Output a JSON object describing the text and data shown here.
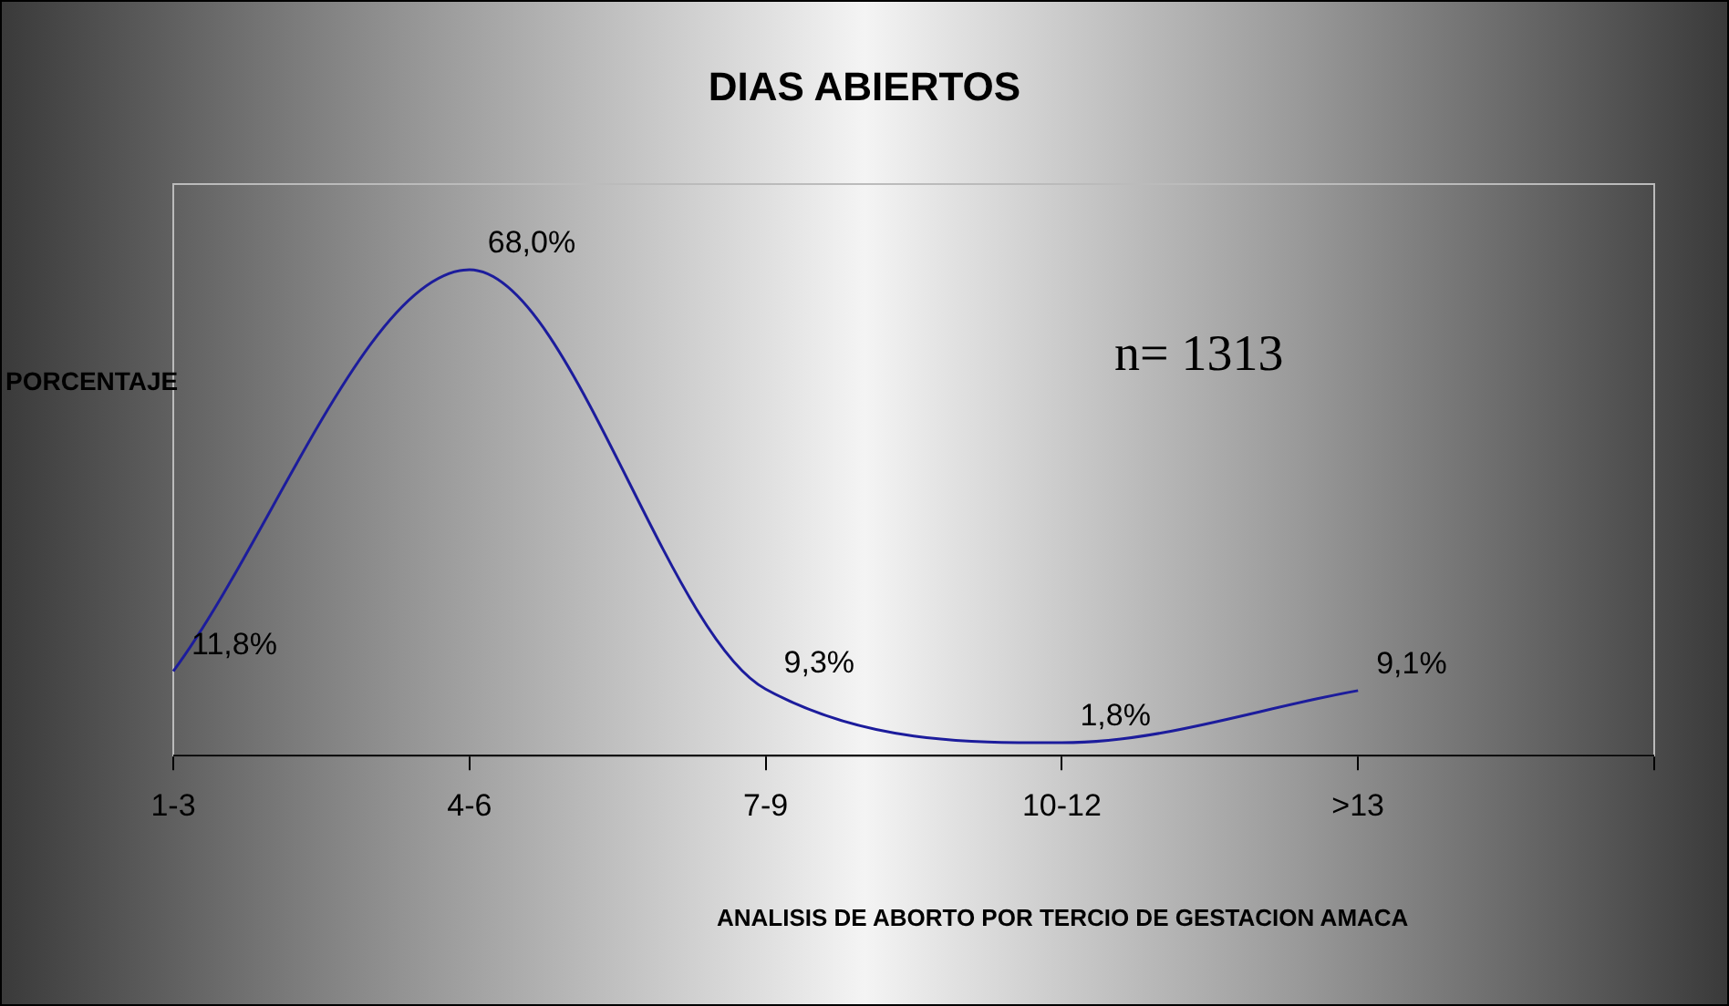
{
  "chart_data": {
    "type": "line",
    "title": "DIAS ABIERTOS",
    "xlabel": "ANALISIS DE ABORTO POR TERCIO DE GESTACION AMACA",
    "ylabel": "PORCENTAJE",
    "annotations": [
      "n= 1313"
    ],
    "categories": [
      "1-3",
      "4-6",
      "7-9",
      "10-12",
      ">13",
      null
    ],
    "series": [
      {
        "color": "#1c1c9c",
        "values": [
          11.8,
          68.0,
          9.3,
          1.8,
          9.1,
          null
        ],
        "value_labels": [
          "11,8%",
          "68,0%",
          "9,3%",
          "1,8%",
          "9,1%",
          null
        ]
      }
    ],
    "ylim": [
      0,
      80
    ],
    "tick_labels": "x",
    "grid": false,
    "legend": false,
    "marker": "none",
    "line_style": "solid"
  }
}
